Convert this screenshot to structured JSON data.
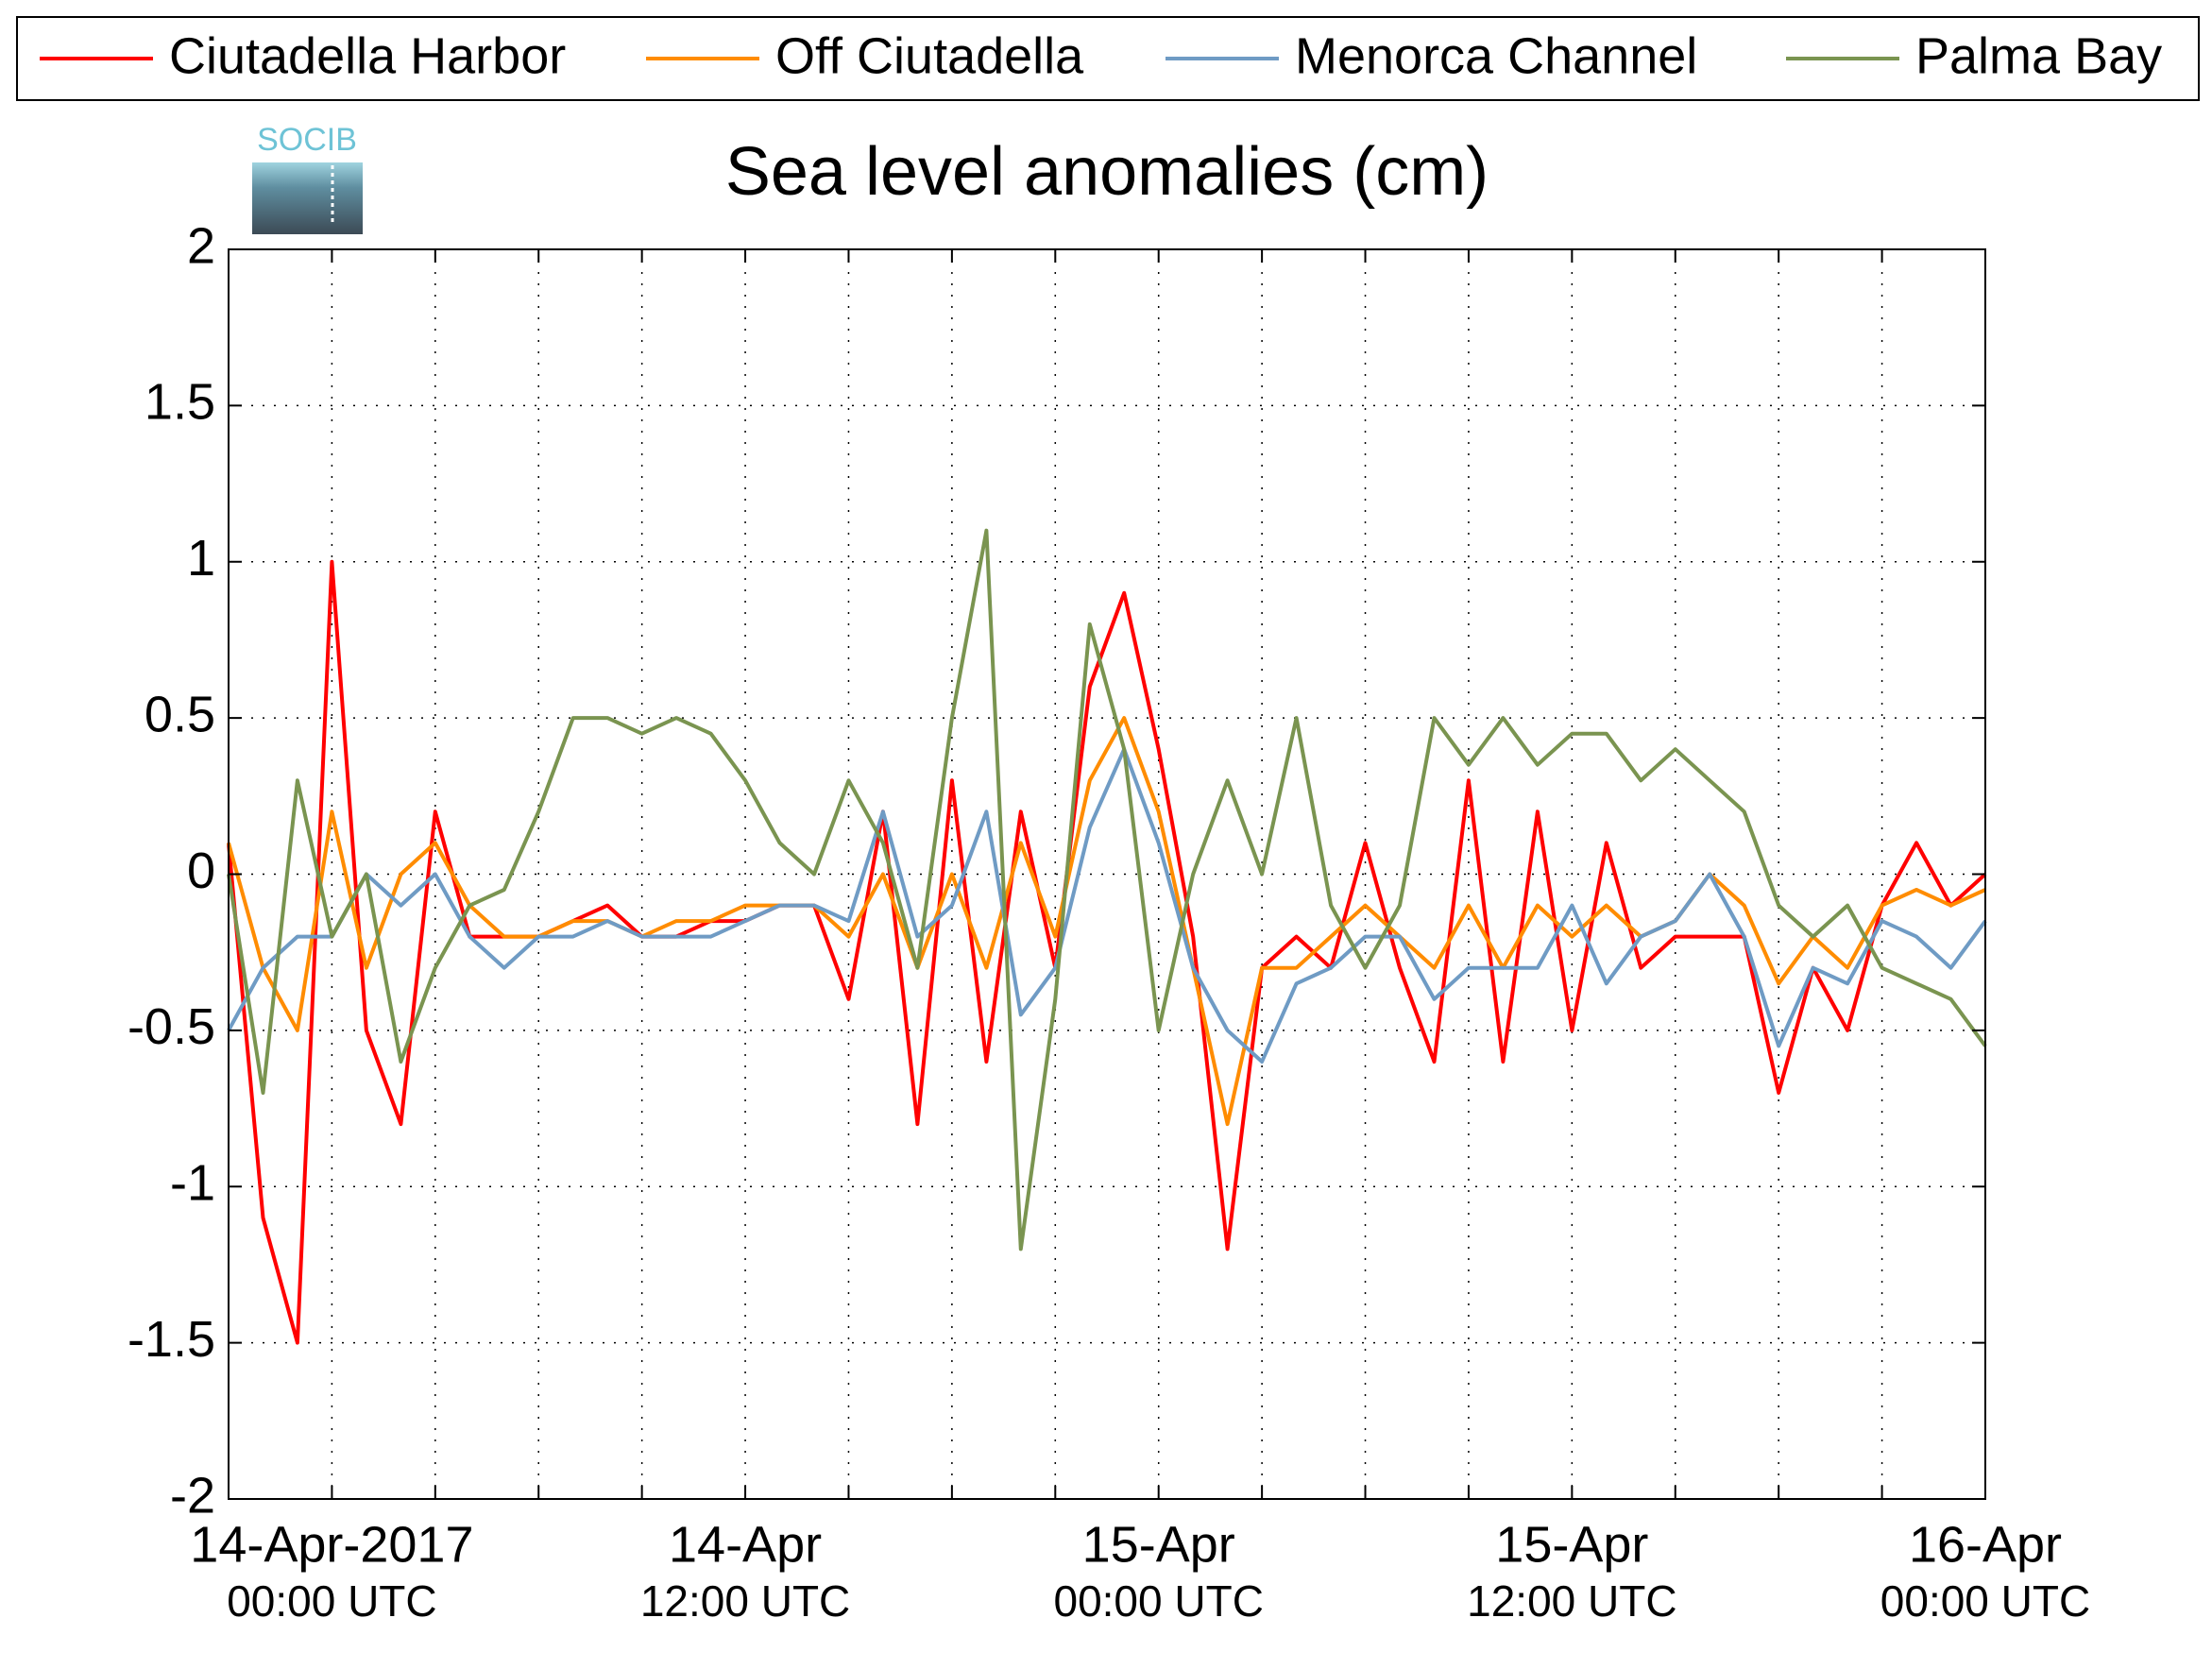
{
  "chart_data": {
    "type": "line",
    "title": "Sea level anomalies (cm)",
    "logo": "SOCIB",
    "x": [
      -3,
      -2,
      -1,
      0,
      1,
      2,
      3,
      4,
      5,
      6,
      7,
      8,
      9,
      10,
      11,
      12,
      13,
      14,
      15,
      16,
      17,
      18,
      19,
      20,
      21,
      22,
      23,
      24,
      25,
      26,
      27,
      28,
      29,
      30,
      31,
      32,
      33,
      34,
      35,
      36,
      37,
      38,
      39,
      40,
      41,
      42,
      43,
      44,
      45,
      46,
      47,
      48
    ],
    "series": [
      {
        "name": "Ciutadella Harbor",
        "color": "#ff0000",
        "values": [
          0.1,
          -1.1,
          -1.5,
          1.0,
          -0.5,
          -0.8,
          0.2,
          -0.2,
          -0.2,
          -0.2,
          -0.15,
          -0.1,
          -0.2,
          -0.2,
          -0.15,
          -0.15,
          -0.1,
          -0.1,
          -0.4,
          0.2,
          -0.8,
          0.3,
          -0.6,
          0.2,
          -0.3,
          0.6,
          0.9,
          0.4,
          -0.2,
          -1.2,
          -0.3,
          -0.2,
          -0.3,
          0.1,
          -0.3,
          -0.6,
          0.3,
          -0.6,
          0.2,
          -0.5,
          0.1,
          -0.3,
          -0.2,
          -0.2,
          -0.2,
          -0.7,
          -0.3,
          -0.5,
          -0.1,
          0.1,
          -0.1,
          0.0
        ]
      },
      {
        "name": "Off Ciutadella",
        "color": "#ff8c00",
        "values": [
          0.1,
          -0.3,
          -0.5,
          0.2,
          -0.3,
          0.0,
          0.1,
          -0.1,
          -0.2,
          -0.2,
          -0.15,
          -0.15,
          -0.2,
          -0.15,
          -0.15,
          -0.1,
          -0.1,
          -0.1,
          -0.2,
          0.0,
          -0.3,
          0.0,
          -0.3,
          0.1,
          -0.2,
          0.3,
          0.5,
          0.2,
          -0.3,
          -0.8,
          -0.3,
          -0.3,
          -0.2,
          -0.1,
          -0.2,
          -0.3,
          -0.1,
          -0.3,
          -0.1,
          -0.2,
          -0.1,
          -0.2,
          -0.15,
          0.0,
          -0.1,
          -0.35,
          -0.2,
          -0.3,
          -0.1,
          -0.05,
          -0.1,
          -0.05
        ]
      },
      {
        "name": "Menorca Channel",
        "color": "#6f9bc4",
        "values": [
          -0.5,
          -0.3,
          -0.2,
          -0.2,
          0.0,
          -0.1,
          0.0,
          -0.2,
          -0.3,
          -0.2,
          -0.2,
          -0.15,
          -0.2,
          -0.2,
          -0.2,
          -0.15,
          -0.1,
          -0.1,
          -0.15,
          0.2,
          -0.2,
          -0.1,
          0.2,
          -0.45,
          -0.3,
          0.15,
          0.4,
          0.1,
          -0.3,
          -0.5,
          -0.6,
          -0.35,
          -0.3,
          -0.2,
          -0.2,
          -0.4,
          -0.3,
          -0.3,
          -0.3,
          -0.1,
          -0.35,
          -0.2,
          -0.15,
          0.0,
          -0.2,
          -0.55,
          -0.3,
          -0.35,
          -0.15,
          -0.2,
          -0.3,
          -0.15
        ]
      },
      {
        "name": "Palma Bay",
        "color": "#7a9450",
        "values": [
          0.0,
          -0.7,
          0.3,
          -0.2,
          0.0,
          -0.6,
          -0.3,
          -0.1,
          -0.05,
          0.2,
          0.5,
          0.5,
          0.45,
          0.5,
          0.45,
          0.3,
          0.1,
          0.0,
          0.3,
          0.1,
          -0.3,
          0.5,
          1.1,
          -1.2,
          -0.4,
          0.8,
          0.4,
          -0.5,
          0.0,
          0.3,
          0.0,
          0.5,
          -0.1,
          -0.3,
          -0.1,
          0.5,
          0.35,
          0.5,
          0.35,
          0.45,
          0.45,
          0.3,
          0.4,
          0.3,
          0.2,
          -0.1,
          -0.2,
          -0.1,
          -0.3,
          -0.35,
          -0.4,
          -0.55
        ]
      }
    ],
    "xlim": [
      -3,
      48
    ],
    "xticks": [
      {
        "value": 0,
        "label": [
          "14-Apr-2017",
          "00:00 UTC"
        ]
      },
      {
        "value": 12,
        "label": [
          "14-Apr",
          "12:00 UTC"
        ]
      },
      {
        "value": 24,
        "label": [
          "15-Apr",
          "00:00 UTC"
        ]
      },
      {
        "value": 36,
        "label": [
          "15-Apr",
          "12:00 UTC"
        ]
      },
      {
        "value": 48,
        "label": [
          "16-Apr",
          "00:00 UTC"
        ]
      }
    ],
    "xticks_minor": [
      3,
      6,
      9,
      15,
      18,
      21,
      27,
      30,
      33,
      39,
      42,
      45
    ],
    "ylim": [
      -2,
      2
    ],
    "yticks": [
      -2,
      -1.5,
      -1,
      -0.5,
      0,
      0.5,
      1,
      1.5,
      2
    ],
    "grid": true,
    "legend": "top"
  }
}
